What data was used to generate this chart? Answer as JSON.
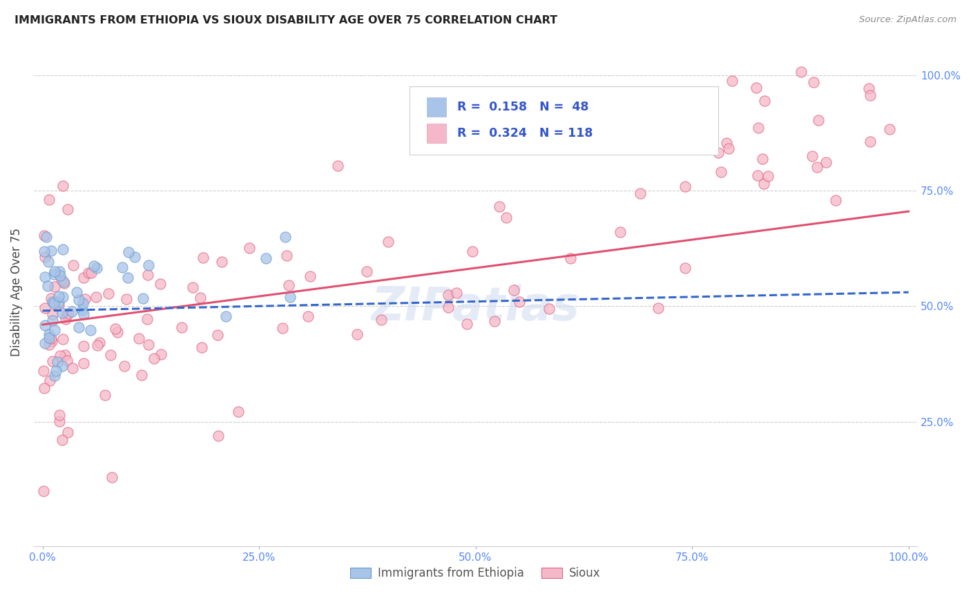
{
  "title": "IMMIGRANTS FROM ETHIOPIA VS SIOUX DISABILITY AGE OVER 75 CORRELATION CHART",
  "source": "Source: ZipAtlas.com",
  "ylabel": "Disability Age Over 75",
  "ethiopia_color": "#a8c4e8",
  "ethiopia_edge_color": "#6699cc",
  "sioux_color": "#f5b8c8",
  "sioux_edge_color": "#e06080",
  "trendline_ethiopia_color": "#3366cc",
  "trendline_sioux_color": "#e05070",
  "background_color": "#ffffff",
  "grid_color": "#cccccc",
  "tick_color": "#5588ff",
  "title_color": "#222222",
  "source_color": "#888888",
  "watermark_color": "#ccd8ee",
  "legend_text_color": "#3355cc",
  "legend_label_color": "#555555"
}
